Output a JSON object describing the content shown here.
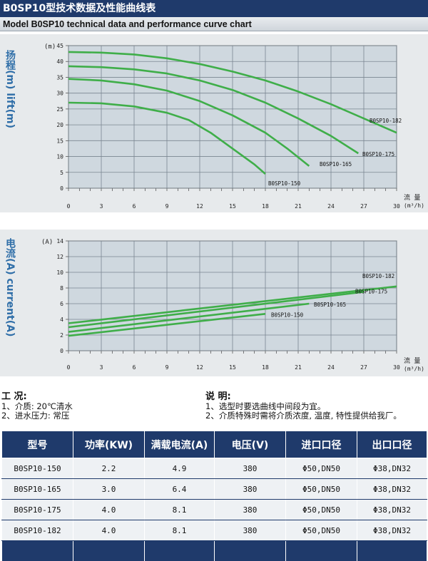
{
  "header": {
    "title": "B0SP10型技术数据及性能曲线表",
    "subtitle": "Model B0SP10 technical data and performance curve chart"
  },
  "chart_head": {
    "y_label": "扬程(m) lift(m)",
    "y_unit": "(m)",
    "x_label_cn": "流  量",
    "x_unit": "(m³/h)"
  },
  "chart_current": {
    "y_label": "电流(A) current(A)",
    "y_unit": "(A)",
    "x_label_cn": "流  量",
    "x_unit": "(m³/h)"
  },
  "chart_data": [
    {
      "type": "line",
      "y_unit": "(m)",
      "x_unit": "(m³/h)",
      "xlim": [
        0,
        30
      ],
      "ylim": [
        0,
        45
      ],
      "x_ticks": [
        0,
        3,
        6,
        9,
        12,
        15,
        18,
        21,
        24,
        27,
        30
      ],
      "y_ticks": [
        0,
        5,
        10,
        15,
        20,
        25,
        30,
        35,
        40,
        45
      ],
      "grid": true,
      "line_color": "#3fae49",
      "series": [
        {
          "name": "B0SP10-182",
          "x": [
            0,
            3,
            6,
            9,
            12,
            15,
            18,
            21,
            24,
            27,
            30
          ],
          "y": [
            43,
            42.8,
            42.2,
            41,
            39.2,
            36.8,
            34,
            30.5,
            26.5,
            22,
            17.5
          ]
        },
        {
          "name": "B0SP10-175",
          "x": [
            0,
            3,
            6,
            9,
            12,
            15,
            18,
            21,
            24,
            26.5
          ],
          "y": [
            38.5,
            38.2,
            37.5,
            36.2,
            34,
            31,
            27,
            22,
            16.5,
            11
          ]
        },
        {
          "name": "B0SP10-165",
          "x": [
            0,
            3,
            6,
            9,
            12,
            15,
            18,
            20,
            22
          ],
          "y": [
            34.5,
            34,
            32.8,
            30.8,
            27.5,
            23,
            17.5,
            12.5,
            7
          ]
        },
        {
          "name": "B0SP10-150",
          "x": [
            0,
            3,
            6,
            9,
            11,
            13,
            15,
            17,
            18
          ],
          "y": [
            27,
            26.8,
            25.8,
            23.8,
            21.5,
            17.5,
            12.5,
            7.5,
            4.5
          ]
        }
      ]
    },
    {
      "type": "line",
      "y_unit": "(A)",
      "x_unit": "(m³/h)",
      "xlim": [
        0,
        30
      ],
      "ylim": [
        0,
        14
      ],
      "x_ticks": [
        0,
        3,
        6,
        9,
        12,
        15,
        18,
        21,
        24,
        27,
        30
      ],
      "y_ticks": [
        0,
        2,
        4,
        6,
        8,
        10,
        12,
        14
      ],
      "grid": true,
      "line_color": "#3fae49",
      "series": [
        {
          "name": "B0SP10-182",
          "x": [
            0,
            30
          ],
          "y": [
            3.5,
            8.2
          ]
        },
        {
          "name": "B0SP10-175",
          "x": [
            0,
            27
          ],
          "y": [
            3.0,
            7.5
          ]
        },
        {
          "name": "B0SP10-165",
          "x": [
            0,
            22
          ],
          "y": [
            2.4,
            6.0
          ]
        },
        {
          "name": "B0SP10-150",
          "x": [
            0,
            18
          ],
          "y": [
            1.9,
            4.7
          ]
        }
      ]
    }
  ],
  "notes": {
    "conditions_title": "工 况:",
    "conditions": [
      "1、介质: 20℃清水",
      "2、进水压力: 常压"
    ],
    "remarks_title": "说 明:",
    "remarks": [
      "1、选型时要选曲线中间段为宜。",
      "2、介质特殊时需将介质浓度, 温度, 特性提供给我厂。"
    ]
  },
  "spec_table": {
    "headers": [
      "型号",
      "功率(KW)",
      "满载电流(A)",
      "电压(V)",
      "进口口径",
      "出口口径"
    ],
    "rows": [
      [
        "B0SP10-150",
        "2.2",
        "4.9",
        "380",
        "Φ50,DN50",
        "Φ38,DN32"
      ],
      [
        "B0SP10-165",
        "3.0",
        "6.4",
        "380",
        "Φ50,DN50",
        "Φ38,DN32"
      ],
      [
        "B0SP10-175",
        "4.0",
        "8.1",
        "380",
        "Φ50,DN50",
        "Φ38,DN32"
      ],
      [
        "B0SP10-182",
        "4.0",
        "8.1",
        "380",
        "Φ50,DN50",
        "Φ38,DN32"
      ]
    ]
  }
}
